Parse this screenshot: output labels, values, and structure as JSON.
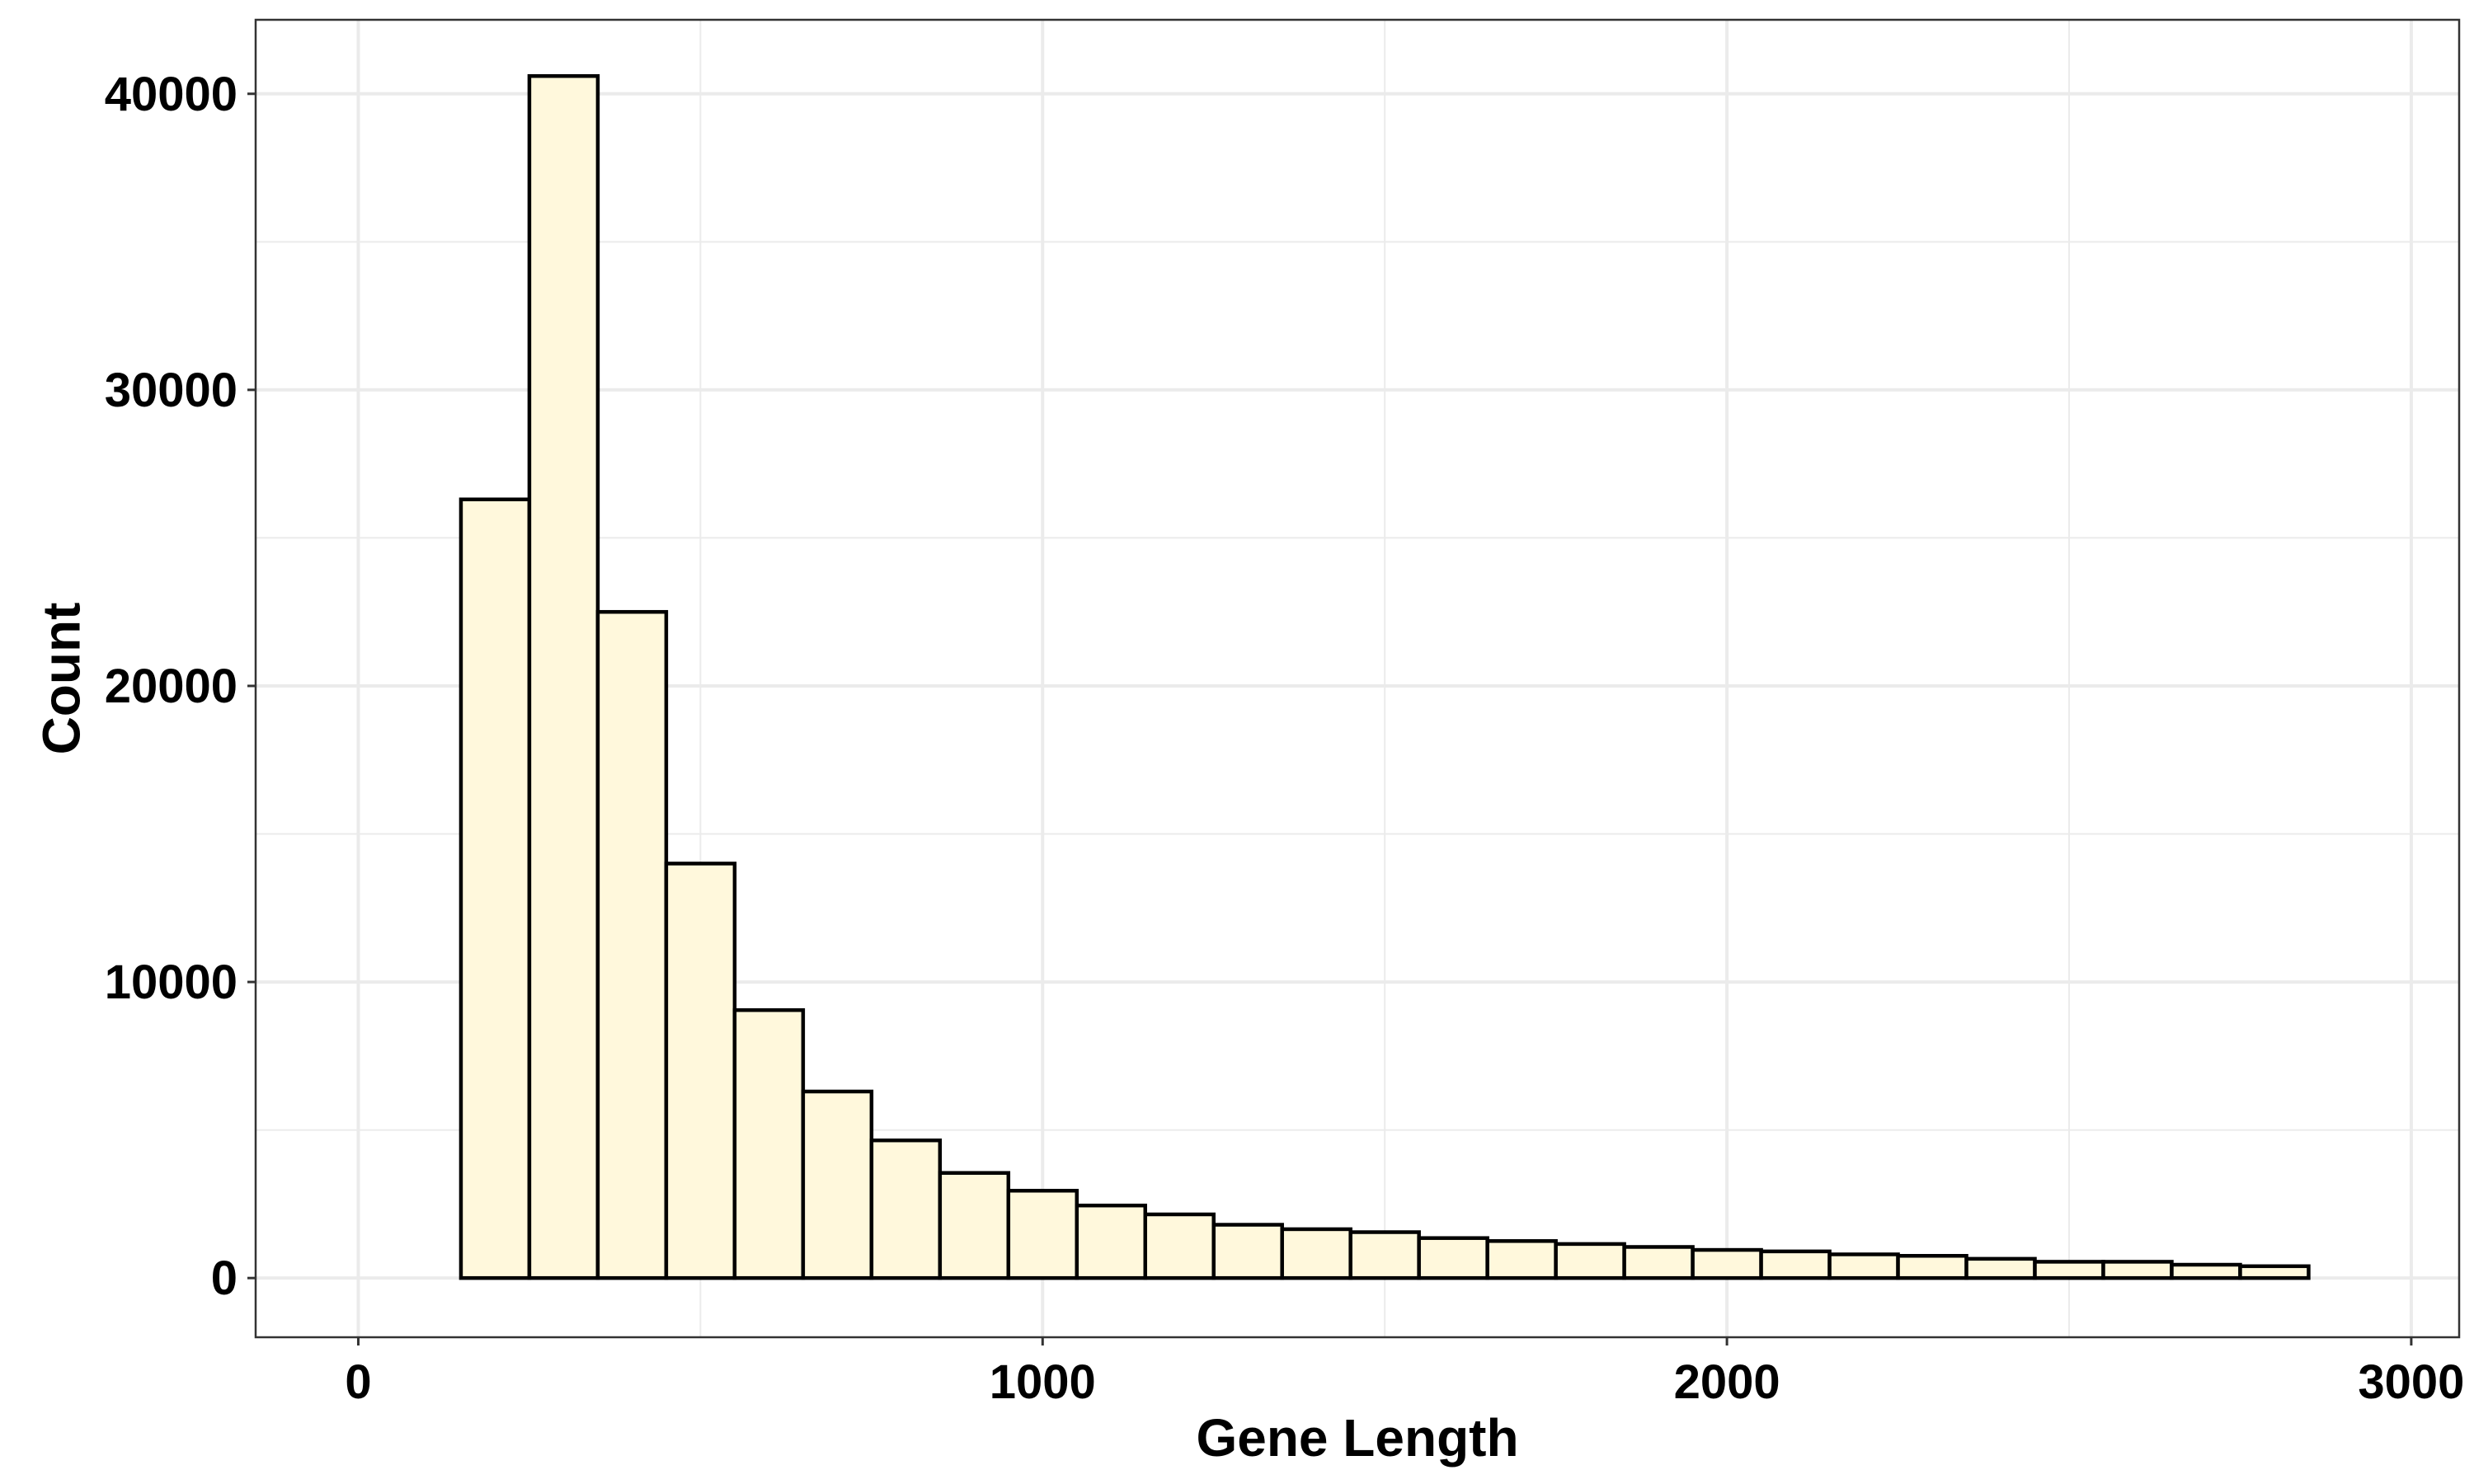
{
  "chart_data": {
    "type": "bar",
    "subtype": "histogram",
    "title": "",
    "xlabel": "Gene Length",
    "ylabel": "Count",
    "xlim": [
      -150,
      3070
    ],
    "ylim": [
      -2000,
      42500
    ],
    "x_ticks": [
      0,
      1000,
      2000,
      3000
    ],
    "y_ticks": [
      0,
      10000,
      20000,
      30000,
      40000
    ],
    "x_tick_labels": [
      "0",
      "1000",
      "2000",
      "3000"
    ],
    "y_tick_labels": [
      "0",
      "10000",
      "20000",
      "30000",
      "40000"
    ],
    "grid": true,
    "legend": "none",
    "bin_width": 100,
    "bins": [
      {
        "start": 50,
        "end": 150,
        "count": 0
      },
      {
        "start": 150,
        "end": 250,
        "count": 26300
      },
      {
        "start": 250,
        "end": 350,
        "count": 40600
      },
      {
        "start": 350,
        "end": 450,
        "count": 22500
      },
      {
        "start": 450,
        "end": 550,
        "count": 14000
      },
      {
        "start": 550,
        "end": 650,
        "count": 9050
      },
      {
        "start": 650,
        "end": 750,
        "count": 6300
      },
      {
        "start": 750,
        "end": 850,
        "count": 4650
      },
      {
        "start": 850,
        "end": 950,
        "count": 3550
      },
      {
        "start": 950,
        "end": 1050,
        "count": 2950
      },
      {
        "start": 1050,
        "end": 1150,
        "count": 2450
      },
      {
        "start": 1150,
        "end": 1250,
        "count": 2150
      },
      {
        "start": 1250,
        "end": 1350,
        "count": 1800
      },
      {
        "start": 1350,
        "end": 1450,
        "count": 1650
      },
      {
        "start": 1450,
        "end": 1550,
        "count": 1550
      },
      {
        "start": 1550,
        "end": 1650,
        "count": 1350
      },
      {
        "start": 1650,
        "end": 1750,
        "count": 1250
      },
      {
        "start": 1750,
        "end": 1850,
        "count": 1150
      },
      {
        "start": 1850,
        "end": 1950,
        "count": 1050
      },
      {
        "start": 1950,
        "end": 2050,
        "count": 950
      },
      {
        "start": 2050,
        "end": 2150,
        "count": 900
      },
      {
        "start": 2150,
        "end": 2250,
        "count": 800
      },
      {
        "start": 2250,
        "end": 2350,
        "count": 750
      },
      {
        "start": 2350,
        "end": 2450,
        "count": 650
      },
      {
        "start": 2450,
        "end": 2550,
        "count": 550
      },
      {
        "start": 2550,
        "end": 2650,
        "count": 550
      },
      {
        "start": 2650,
        "end": 2750,
        "count": 450
      },
      {
        "start": 2750,
        "end": 2850,
        "count": 400
      }
    ],
    "colors": {
      "bar_fill": "#fff8dc",
      "bar_stroke": "#000000",
      "grid": "#ebebeb",
      "panel_border": "#333333",
      "background": "#ffffff"
    }
  }
}
